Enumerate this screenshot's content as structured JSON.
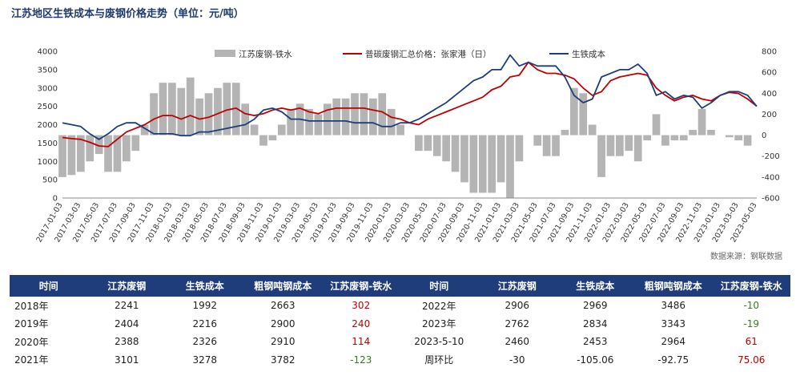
{
  "title": "江苏地区生铁成本与废钢价格走势（单位：元/吨）",
  "source": "数据来源：钢联数据",
  "chart_data": {
    "type": "combo",
    "legend": [
      "江苏废钢-铁水",
      "普碳废钢汇总价格：张家港（日）",
      "生铁成本"
    ],
    "legend_position": "top",
    "left_axis": {
      "min": 0,
      "max": 4000,
      "ticks": [
        "0",
        "500",
        "1000",
        "1500",
        "2000",
        "2500",
        "3000",
        "3500",
        "4000"
      ]
    },
    "right_axis": {
      "min": -600,
      "max": 800,
      "ticks": [
        "-600",
        "-400",
        "-200",
        "0",
        "200",
        "400",
        "600",
        "800"
      ]
    },
    "x_tick_labels": [
      "2017-01-03",
      "2017-03-03",
      "2017-05-03",
      "2017-07-03",
      "2017-09-03",
      "2017-11-03",
      "2018-01-03",
      "2018-03-03",
      "2018-05-03",
      "2018-07-03",
      "2018-09-03",
      "2018-11-03",
      "2019-01-03",
      "2019-03-03",
      "2019-05-03",
      "2019-07-03",
      "2019-09-03",
      "2019-11-03",
      "2020-01-03",
      "2020-03-03",
      "2020-05-03",
      "2020-07-03",
      "2020-09-03",
      "2020-11-03",
      "2021-01-03",
      "2021-03-03",
      "2021-05-03",
      "2021-07-03",
      "2021-09-03",
      "2021-11-03",
      "2022-01-03",
      "2022-03-03",
      "2022-05-03",
      "2022-07-03",
      "2022-09-03",
      "2022-11-03",
      "2023-01-03",
      "2023-03-03",
      "2023-05-03"
    ],
    "monthly_index_start": "2017-01",
    "series": [
      {
        "name": "普碳废钢汇总价格：张家港（日）",
        "axis": "left",
        "color": "#c00000",
        "values": [
          1650,
          1620,
          1600,
          1520,
          1420,
          1400,
          1600,
          1800,
          1900,
          2000,
          2150,
          2250,
          2250,
          2150,
          2250,
          2150,
          2200,
          2300,
          2400,
          2450,
          2300,
          2250,
          2300,
          2400,
          2450,
          2400,
          2450,
          2350,
          2300,
          2400,
          2450,
          2450,
          2450,
          2450,
          2400,
          2350,
          2200,
          2150,
          2050,
          2000,
          2150,
          2250,
          2350,
          2450,
          2550,
          2650,
          2750,
          2950,
          3050,
          3300,
          3350,
          3700,
          3500,
          3400,
          3400,
          3350,
          3250,
          3000,
          2800,
          2900,
          3200,
          3300,
          3350,
          3400,
          3350,
          3000,
          2800,
          2650,
          2750,
          2800,
          2700,
          2650,
          2800,
          2880,
          2850,
          2700,
          2500
        ]
      },
      {
        "name": "生铁成本",
        "axis": "left",
        "color": "#1f3d7a",
        "values": [
          2050,
          2000,
          1950,
          1750,
          1600,
          1750,
          1950,
          2050,
          2050,
          1900,
          1750,
          1750,
          1750,
          1700,
          1700,
          1800,
          1800,
          1850,
          1900,
          1950,
          2000,
          2150,
          2400,
          2450,
          2350,
          2150,
          2150,
          2100,
          2100,
          2100,
          2100,
          2100,
          2050,
          2050,
          2050,
          1950,
          1950,
          2050,
          2050,
          2150,
          2300,
          2450,
          2600,
          2800,
          3000,
          3200,
          3300,
          3500,
          3500,
          3900,
          3600,
          3700,
          3600,
          3600,
          3600,
          3300,
          2800,
          2600,
          2700,
          3300,
          3400,
          3500,
          3500,
          3650,
          3400,
          2800,
          2900,
          2700,
          2800,
          2750,
          2450,
          2600,
          2800,
          2900,
          2900,
          2800,
          2500
        ]
      },
      {
        "name": "江苏废钢-铁水",
        "axis": "right",
        "color": "#b4b4b4",
        "values": [
          -400,
          -380,
          -350,
          -250,
          -180,
          -350,
          -350,
          -250,
          -150,
          100,
          400,
          500,
          500,
          450,
          550,
          350,
          400,
          450,
          500,
          500,
          300,
          100,
          -100,
          -50,
          100,
          250,
          300,
          250,
          200,
          300,
          350,
          350,
          400,
          400,
          350,
          400,
          250,
          100,
          0,
          -150,
          -150,
          -200,
          -250,
          -350,
          -450,
          -550,
          -550,
          -550,
          -450,
          -600,
          -250,
          0,
          -100,
          -200,
          -200,
          50,
          450,
          400,
          100,
          -400,
          -200,
          -200,
          -150,
          -250,
          -50,
          200,
          -100,
          -50,
          -50,
          50,
          250,
          50,
          0,
          -20,
          -50,
          -100,
          0
        ]
      }
    ]
  },
  "table": {
    "headers": [
      "时间",
      "江苏废钢",
      "生铁成本",
      "粗钢吨钢成本",
      "江苏废钢-铁水",
      "时间",
      "江苏废钢",
      "生铁成本",
      "粗钢吨钢成本",
      "江苏废钢-铁水"
    ],
    "rows": [
      [
        "2018年",
        "2241",
        "1992",
        "2663",
        "302",
        "2022年",
        "2906",
        "2969",
        "3486",
        "-10"
      ],
      [
        "2019年",
        "2404",
        "2216",
        "2900",
        "240",
        "2023年",
        "2762",
        "2834",
        "3343",
        "-19"
      ],
      [
        "2020年",
        "2388",
        "2326",
        "2910",
        "114",
        "2023-5-10",
        "2460",
        "2453",
        "2964",
        "61"
      ],
      [
        "2021年",
        "3101",
        "3278",
        "3782",
        "-123",
        "周环比",
        "-30",
        "-105.06",
        "-92.75",
        "75.06"
      ]
    ]
  }
}
